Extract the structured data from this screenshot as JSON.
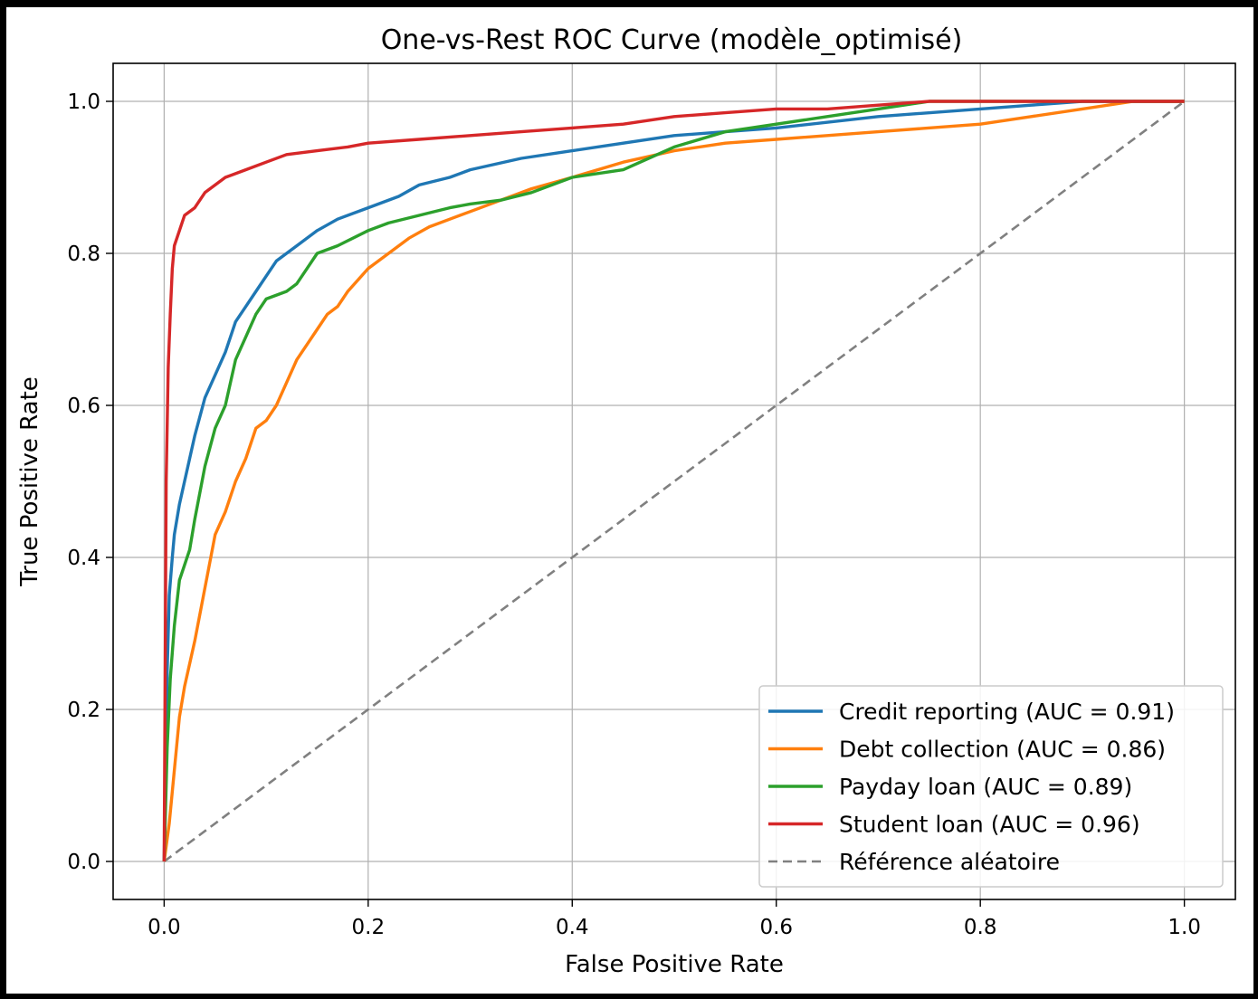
{
  "chart_data": {
    "type": "line",
    "title": "One-vs-Rest ROC Curve (modèle_optimisé)",
    "xlabel": "False Positive Rate",
    "ylabel": "True Positive Rate",
    "xlim": [
      -0.05,
      1.05
    ],
    "ylim": [
      -0.05,
      1.05
    ],
    "xticks": [
      0.0,
      0.2,
      0.4,
      0.6,
      0.8,
      1.0
    ],
    "xtick_labels": [
      "0.0",
      "0.2",
      "0.4",
      "0.6",
      "0.8",
      "1.0"
    ],
    "yticks": [
      0.0,
      0.2,
      0.4,
      0.6,
      0.8,
      1.0
    ],
    "ytick_labels": [
      "0.0",
      "0.2",
      "0.4",
      "0.6",
      "0.8",
      "1.0"
    ],
    "grid": true,
    "legend_position": "lower-right",
    "series": [
      {
        "name": "Credit reporting (AUC = 0.91)",
        "color": "#1f77b4",
        "x": [
          0.0,
          0.003,
          0.005,
          0.008,
          0.01,
          0.015,
          0.02,
          0.025,
          0.03,
          0.04,
          0.05,
          0.06,
          0.07,
          0.08,
          0.09,
          0.1,
          0.11,
          0.12,
          0.13,
          0.15,
          0.17,
          0.2,
          0.23,
          0.25,
          0.28,
          0.3,
          0.35,
          0.4,
          0.45,
          0.5,
          0.55,
          0.6,
          0.7,
          0.8,
          0.85,
          0.9,
          0.95,
          1.0
        ],
        "y": [
          0.0,
          0.25,
          0.35,
          0.4,
          0.43,
          0.47,
          0.5,
          0.53,
          0.56,
          0.61,
          0.64,
          0.67,
          0.71,
          0.73,
          0.75,
          0.77,
          0.79,
          0.8,
          0.81,
          0.83,
          0.845,
          0.86,
          0.875,
          0.89,
          0.9,
          0.91,
          0.925,
          0.935,
          0.945,
          0.955,
          0.96,
          0.965,
          0.98,
          0.99,
          0.995,
          1.0,
          1.0,
          1.0
        ]
      },
      {
        "name": "Debt collection (AUC = 0.86)",
        "color": "#ff7f0e",
        "x": [
          0.0,
          0.005,
          0.01,
          0.015,
          0.02,
          0.03,
          0.04,
          0.05,
          0.06,
          0.07,
          0.08,
          0.09,
          0.1,
          0.11,
          0.12,
          0.13,
          0.14,
          0.15,
          0.16,
          0.17,
          0.18,
          0.2,
          0.22,
          0.24,
          0.26,
          0.28,
          0.3,
          0.33,
          0.36,
          0.4,
          0.45,
          0.5,
          0.55,
          0.6,
          0.7,
          0.8,
          0.85,
          0.9,
          0.95,
          1.0
        ],
        "y": [
          0.0,
          0.05,
          0.12,
          0.19,
          0.23,
          0.29,
          0.36,
          0.43,
          0.46,
          0.5,
          0.53,
          0.57,
          0.58,
          0.6,
          0.63,
          0.66,
          0.68,
          0.7,
          0.72,
          0.73,
          0.75,
          0.78,
          0.8,
          0.82,
          0.835,
          0.845,
          0.855,
          0.87,
          0.885,
          0.9,
          0.92,
          0.935,
          0.945,
          0.95,
          0.96,
          0.97,
          0.98,
          0.99,
          1.0,
          1.0
        ]
      },
      {
        "name": "Payday loan (AUC = 0.89)",
        "color": "#2ca02c",
        "x": [
          0.0,
          0.003,
          0.006,
          0.01,
          0.015,
          0.02,
          0.025,
          0.03,
          0.04,
          0.05,
          0.06,
          0.07,
          0.08,
          0.09,
          0.1,
          0.12,
          0.13,
          0.14,
          0.15,
          0.17,
          0.2,
          0.22,
          0.25,
          0.28,
          0.3,
          0.33,
          0.36,
          0.4,
          0.45,
          0.5,
          0.55,
          0.6,
          0.65,
          0.7,
          0.75,
          0.8,
          0.9,
          1.0
        ],
        "y": [
          0.0,
          0.15,
          0.24,
          0.31,
          0.37,
          0.39,
          0.41,
          0.45,
          0.52,
          0.57,
          0.6,
          0.66,
          0.69,
          0.72,
          0.74,
          0.75,
          0.76,
          0.78,
          0.8,
          0.81,
          0.83,
          0.84,
          0.85,
          0.86,
          0.865,
          0.87,
          0.88,
          0.9,
          0.91,
          0.94,
          0.96,
          0.97,
          0.98,
          0.99,
          1.0,
          1.0,
          1.0,
          1.0
        ]
      },
      {
        "name": "Student loan (AUC = 0.96)",
        "color": "#d62728",
        "x": [
          0.0,
          0.002,
          0.004,
          0.006,
          0.008,
          0.01,
          0.015,
          0.02,
          0.03,
          0.04,
          0.05,
          0.06,
          0.08,
          0.1,
          0.12,
          0.15,
          0.18,
          0.2,
          0.25,
          0.3,
          0.35,
          0.4,
          0.45,
          0.5,
          0.55,
          0.6,
          0.65,
          0.7,
          0.75,
          0.8,
          0.9,
          1.0
        ],
        "y": [
          0.0,
          0.5,
          0.65,
          0.72,
          0.78,
          0.81,
          0.83,
          0.85,
          0.86,
          0.88,
          0.89,
          0.9,
          0.91,
          0.92,
          0.93,
          0.935,
          0.94,
          0.945,
          0.95,
          0.955,
          0.96,
          0.965,
          0.97,
          0.98,
          0.985,
          0.99,
          0.99,
          0.995,
          1.0,
          1.0,
          1.0,
          1.0
        ]
      },
      {
        "name": "Référence aléatoire",
        "color": "#808080",
        "dashed": true,
        "x": [
          0.0,
          1.0
        ],
        "y": [
          0.0,
          1.0
        ]
      }
    ]
  }
}
